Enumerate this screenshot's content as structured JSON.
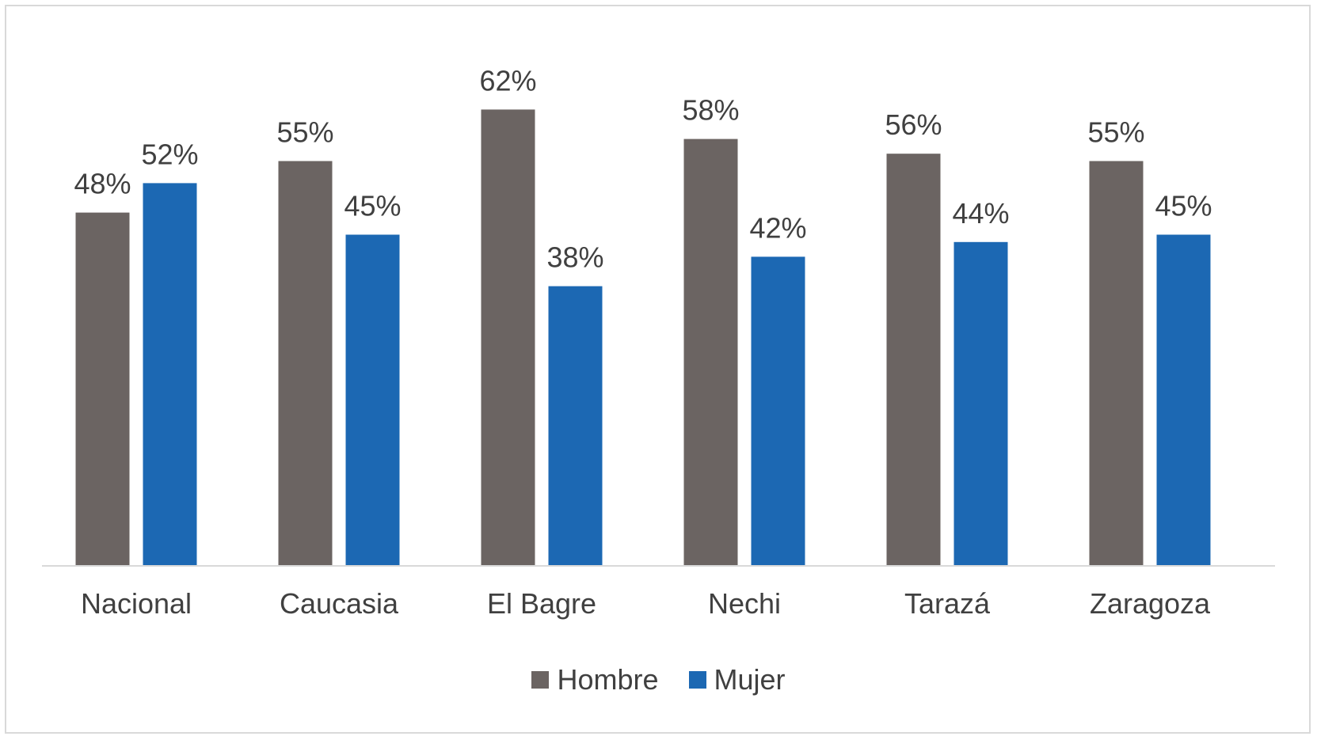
{
  "chart_data": {
    "type": "bar",
    "categories": [
      "Nacional",
      "Caucasia",
      "El Bagre",
      "Nechi",
      "Tarazá",
      "Zaragoza"
    ],
    "series": [
      {
        "name": "Hombre",
        "color": "#6b6462",
        "values": [
          48,
          55,
          62,
          58,
          56,
          55
        ],
        "labels": [
          "48%",
          "55%",
          "62%",
          "58%",
          "56%",
          "55%"
        ]
      },
      {
        "name": "Mujer",
        "color": "#1c68b3",
        "values": [
          52,
          45,
          38,
          42,
          44,
          45
        ],
        "labels": [
          "52%",
          "45%",
          "38%",
          "42%",
          "44%",
          "45%"
        ]
      }
    ],
    "ylim": [
      0,
      70
    ],
    "unit": "%",
    "grid": false,
    "legend_position": "bottom"
  }
}
